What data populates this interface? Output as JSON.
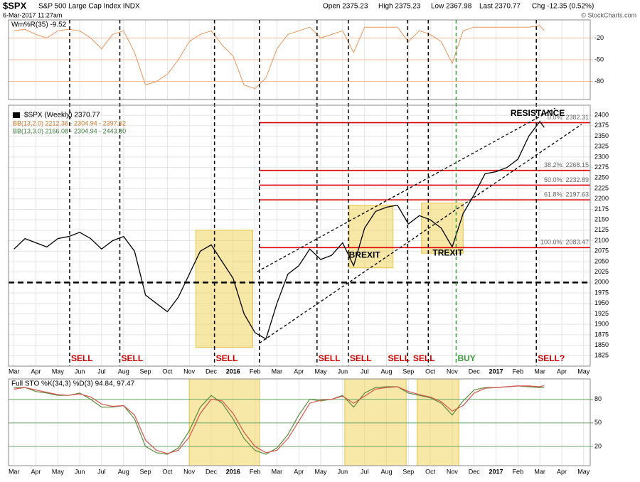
{
  "header": {
    "symbol": "$SPX",
    "name": "S&P 500 Large Cap Index INDX",
    "date": "6-Mar-2017 11:27am",
    "quote": [
      "Open 2375.23",
      "High 2375.23",
      "Low 2367.98",
      "Last 2370.77",
      "Chg -12.35 (0.52%)"
    ],
    "credit": "© StockCharts.com"
  },
  "chart_data": [
    {
      "type": "line",
      "title": "Wm%R(35) -9.52",
      "xlim": [
        -0.25,
        26.3
      ],
      "ylim": [
        -105,
        5
      ],
      "yticks": [
        -20,
        -50,
        -80
      ],
      "series": [
        {
          "color": "#e8955a",
          "x": [
            0,
            0.5,
            1,
            1.5,
            2,
            2.5,
            3,
            3.5,
            4,
            4.5,
            5,
            5.5,
            6,
            6.5,
            7,
            7.5,
            8,
            8.5,
            9,
            9.5,
            10,
            10.5,
            11,
            11.5,
            12,
            12.5,
            13,
            13.5,
            14,
            14.5,
            15,
            15.5,
            16,
            16.5,
            17,
            17.5,
            18,
            18.5,
            19,
            19.5,
            20,
            20.5,
            21,
            21.5,
            22,
            22.5,
            23,
            23.5,
            24,
            24.2
          ],
          "values": [
            -10,
            -8,
            -15,
            -20,
            -10,
            -8,
            -10,
            -20,
            -35,
            -15,
            -10,
            -40,
            -85,
            -80,
            -70,
            -50,
            -25,
            -15,
            -10,
            -30,
            -45,
            -85,
            -90,
            -75,
            -35,
            -15,
            -10,
            -5,
            -20,
            -15,
            -10,
            -40,
            -5,
            -5,
            -5,
            -5,
            -25,
            -10,
            -15,
            -25,
            -55,
            -10,
            -5,
            -5,
            -5,
            -5,
            -5,
            -5,
            -3,
            -9.52
          ]
        }
      ]
    },
    {
      "type": "line",
      "xlim": [
        -0.25,
        26.3
      ],
      "ylim": [
        1800,
        2424
      ],
      "yticks": [
        1825,
        1850,
        1875,
        1900,
        1925,
        1950,
        1975,
        2000,
        2025,
        2050,
        2075,
        2100,
        2125,
        2150,
        2175,
        2200,
        2225,
        2250,
        2275,
        2300,
        2325,
        2350,
        2375,
        2400
      ],
      "xticks": [
        {
          "value": 0,
          "label": "Mar"
        },
        {
          "value": 1,
          "label": "Apr"
        },
        {
          "value": 2,
          "label": "May"
        },
        {
          "value": 3,
          "label": "Jun"
        },
        {
          "value": 4,
          "label": "Jul"
        },
        {
          "value": 5,
          "label": "Aug"
        },
        {
          "value": 6,
          "label": "Sep"
        },
        {
          "value": 7,
          "label": "Oct"
        },
        {
          "value": 8,
          "label": "Nov"
        },
        {
          "value": 9,
          "label": "Dec"
        },
        {
          "value": 10,
          "label": "2016"
        },
        {
          "value": 11,
          "label": "Feb"
        },
        {
          "value": 12,
          "label": "Mar"
        },
        {
          "value": 13,
          "label": "Apr"
        },
        {
          "value": 14,
          "label": "May"
        },
        {
          "value": 15,
          "label": "Jun"
        },
        {
          "value": 16,
          "label": "Jul"
        },
        {
          "value": 17,
          "label": "Aug"
        },
        {
          "value": 18,
          "label": "Sep"
        },
        {
          "value": 19,
          "label": "Oct"
        },
        {
          "value": 20,
          "label": "Nov"
        },
        {
          "value": 21,
          "label": "Dec"
        },
        {
          "value": 22,
          "label": "2017"
        },
        {
          "value": 23,
          "label": "Feb"
        },
        {
          "value": 24,
          "label": "Mar"
        },
        {
          "value": 25,
          "label": "Apr"
        },
        {
          "value": 26,
          "label": "May"
        }
      ],
      "notes": [
        "BB(13,2.0) 2212.36 - 2304.94 - 2397.52",
        "BB(13,3.0) 2166.08 - 2304.94 - 2443.80"
      ],
      "series": [
        {
          "name": "$SPX (Weekly) 2370.77",
          "color": "#000000",
          "x": [
            0,
            0.5,
            1,
            1.5,
            2,
            2.5,
            3,
            3.5,
            4,
            4.5,
            5,
            5.5,
            6,
            6.5,
            7,
            7.5,
            8,
            8.5,
            9,
            9.5,
            10,
            10.5,
            11,
            11.5,
            12,
            12.5,
            13,
            13.5,
            14,
            14.5,
            15,
            15.5,
            16,
            16.5,
            17,
            17.5,
            18,
            18.5,
            19,
            19.5,
            20,
            20.5,
            21,
            21.5,
            22,
            22.5,
            23,
            23.5,
            24,
            24.2
          ],
          "values": [
            2080,
            2105,
            2095,
            2085,
            2105,
            2110,
            2120,
            2105,
            2080,
            2100,
            2110,
            2075,
            1970,
            1950,
            1930,
            1965,
            2020,
            2075,
            2090,
            2050,
            2010,
            1925,
            1880,
            1865,
            1950,
            2020,
            2040,
            2080,
            2055,
            2065,
            2095,
            2040,
            2130,
            2170,
            2180,
            2185,
            2140,
            2160,
            2150,
            2130,
            2085,
            2165,
            2210,
            2260,
            2265,
            2275,
            2295,
            2350,
            2385,
            2370.77
          ]
        }
      ],
      "reference_line": 2000,
      "levels_from": 11.2,
      "levels": [
        {
          "value": 2382.31,
          "label": "0.0%: 2382.31"
        },
        {
          "value": 2268.15,
          "label": "38.2%: 2268.15"
        },
        {
          "value": 2232.89,
          "label": "50.0%: 2232.89"
        },
        {
          "value": 2197.63,
          "label": "61.8%: 2197.63"
        },
        {
          "value": 2083.47,
          "label": "100.0%: 2083.47"
        }
      ],
      "trendlines": [
        {
          "x": [
            11.1,
            24.7
          ],
          "y": [
            2026,
            2417
          ]
        },
        {
          "x": [
            11.2,
            25.9
          ],
          "y": [
            1855,
            2378
          ]
        }
      ],
      "highlights": [
        {
          "x": [
            8.3,
            10.9
          ],
          "y": [
            1845,
            2125
          ]
        },
        {
          "x": [
            15.3,
            17.3
          ],
          "y": [
            2035,
            2185
          ]
        },
        {
          "x": [
            18.6,
            20.5
          ],
          "y": [
            2070,
            2190
          ]
        }
      ],
      "annotations": [
        {
          "text": "RESISTANCE",
          "x": 23.9,
          "y": 2404
        },
        {
          "text": "BREXIT",
          "x": 16,
          "y": 2065
        },
        {
          "text": "TREXIT",
          "x": 19.8,
          "y": 2070
        }
      ],
      "signals": [
        {
          "x": 2.54,
          "label": "SELL"
        },
        {
          "x": 4.83,
          "label": "SELL"
        },
        {
          "x": 9.15,
          "label": "SELL"
        },
        {
          "x": 13.83,
          "label": "SELL"
        },
        {
          "x": 15.26,
          "label": "SELL"
        },
        {
          "x": 17.0,
          "label": "SELL"
        },
        {
          "x": 18.15,
          "label": "SELL"
        },
        {
          "x": 20.18,
          "label": "BUY"
        },
        {
          "x": 23.84,
          "label": "SELL?"
        }
      ],
      "signal_lines": [
        2.54,
        4.83,
        9.15,
        11.2,
        13.83,
        15.26,
        17.96,
        18.91,
        23.84
      ],
      "buy_line": 20.18
    },
    {
      "type": "line",
      "title": "Full STO %K(34,3) %D(3) 94.84, 97.47",
      "xlim": [
        -0.25,
        26.3
      ],
      "ylim": [
        -4.5,
        106
      ],
      "yticks": [
        80,
        50,
        20
      ],
      "highlights": [
        {
          "x": [
            8.0,
            11.2
          ]
        },
        {
          "x": [
            15.1,
            17.9
          ]
        },
        {
          "x": [
            18.4,
            20.3
          ]
        }
      ],
      "series": [
        {
          "color": "#5b8c3a",
          "x": [
            0,
            0.5,
            1,
            1.5,
            2,
            2.5,
            3,
            3.5,
            4,
            4.5,
            5,
            5.5,
            6,
            6.5,
            7,
            7.5,
            8,
            8.5,
            9,
            9.5,
            10,
            10.5,
            11,
            11.5,
            12,
            12.5,
            13,
            13.5,
            14,
            14.5,
            15,
            15.5,
            16,
            16.5,
            17,
            17.5,
            18,
            18.5,
            19,
            19.5,
            20,
            20.5,
            21,
            21.5,
            22,
            22.5,
            23,
            23.5,
            24,
            24.2
          ],
          "values": [
            95,
            95,
            90,
            88,
            85,
            85,
            88,
            80,
            70,
            70,
            72,
            55,
            20,
            12,
            10,
            18,
            40,
            70,
            85,
            75,
            55,
            30,
            15,
            10,
            18,
            35,
            60,
            80,
            78,
            80,
            85,
            70,
            88,
            95,
            96,
            96,
            88,
            85,
            82,
            75,
            60,
            78,
            92,
            95,
            95,
            96,
            97,
            96,
            95,
            94.84
          ]
        },
        {
          "color": "#d9534f",
          "x": [
            0,
            0.5,
            1,
            1.5,
            2,
            2.5,
            3,
            3.5,
            4,
            4.5,
            5,
            5.5,
            6,
            6.5,
            7,
            7.5,
            8,
            8.5,
            9,
            9.5,
            10,
            10.5,
            11,
            11.5,
            12,
            12.5,
            13,
            13.5,
            14,
            14.5,
            15,
            15.5,
            16,
            16.5,
            17,
            17.5,
            18,
            18.5,
            19,
            19.5,
            20,
            20.5,
            21,
            21.5,
            22,
            22.5,
            23,
            23.5,
            24,
            24.2
          ],
          "values": [
            93,
            95,
            92,
            89,
            86,
            85,
            87,
            83,
            74,
            71,
            72,
            60,
            28,
            15,
            11,
            15,
            32,
            62,
            80,
            78,
            62,
            38,
            20,
            12,
            15,
            30,
            52,
            75,
            79,
            80,
            84,
            75,
            84,
            93,
            95,
            96,
            90,
            86,
            83,
            77,
            65,
            72,
            88,
            94,
            95,
            96,
            97,
            97,
            96,
            97.47
          ]
        }
      ]
    }
  ]
}
